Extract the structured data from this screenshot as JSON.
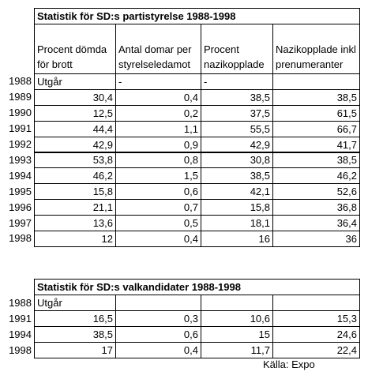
{
  "table1": {
    "title": "Statistik för SD:s partistyrelse 1988-1998",
    "headers": [
      "Procent dömda för brott",
      "Antal domar per styrelseledamot",
      "Procent nazikopplade",
      "Nazikopplade inkl prenumeranter"
    ],
    "rows": [
      {
        "year": "1988",
        "cells": [
          "Utgår",
          "-",
          "-"
        ]
      },
      {
        "year": "1989",
        "cells": [
          "30,4",
          "0,4",
          "38,5",
          "38,5"
        ]
      },
      {
        "year": "1990",
        "cells": [
          "12,5",
          "0,2",
          "37,5",
          "61,5"
        ]
      },
      {
        "year": "1991",
        "cells": [
          "44,4",
          "1,1",
          "55,5",
          "66,7"
        ]
      },
      {
        "year": "1992",
        "cells": [
          "42,9",
          "0,9",
          "42,9",
          "41,7"
        ]
      },
      {
        "year": "1993",
        "cells": [
          "53,8",
          "0,8",
          "30,8",
          "38,5"
        ]
      },
      {
        "year": "1994",
        "cells": [
          "46,2",
          "1,5",
          "38,5",
          "46,2"
        ]
      },
      {
        "year": "1995",
        "cells": [
          "15,8",
          "0,6",
          "42,1",
          "52,6"
        ]
      },
      {
        "year": "1996",
        "cells": [
          "21,1",
          "0,7",
          "15,8",
          "36,8"
        ]
      },
      {
        "year": "1997",
        "cells": [
          "13,6",
          "0,5",
          "18,1",
          "36,4"
        ]
      },
      {
        "year": "1998",
        "cells": [
          "12",
          "0,4",
          "16",
          "36"
        ]
      }
    ]
  },
  "table2": {
    "title": "Statistik för SD:s valkandidater 1988-1998",
    "rows": [
      {
        "year": "1988",
        "cells": [
          "Utgår"
        ]
      },
      {
        "year": "1991",
        "cells": [
          "16,5",
          "0,3",
          "10,6",
          "15,3"
        ]
      },
      {
        "year": "1994",
        "cells": [
          "38,5",
          "0,6",
          "15",
          "24,6"
        ]
      },
      {
        "year": "1998",
        "cells": [
          "17",
          "0,4",
          "11,7",
          "22,4"
        ]
      }
    ]
  },
  "source": "Källa: Expo"
}
